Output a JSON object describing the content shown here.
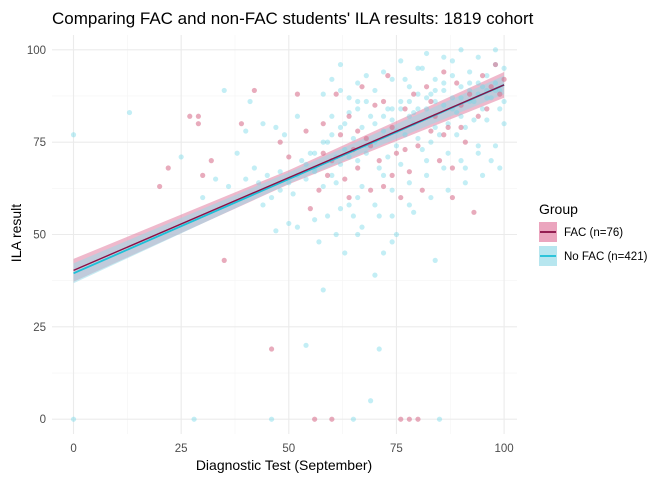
{
  "colors": {
    "fac": "#cc3366",
    "fac_point": "#d9738f",
    "fac_band": "#e27fa3",
    "nofac": "#1ec0d8",
    "nofac_point": "#6fd6e6",
    "nofac_band": "#99dbe8",
    "fac_line": "#8b1046",
    "grid_major": "#ebebeb",
    "grid_minor": "#f4f4f4"
  },
  "chart_data": {
    "type": "scatter",
    "title": "Comparing FAC and non-FAC students' ILA results: 1819 cohort",
    "xlabel": "Diagnostic Test (September)",
    "ylabel": "ILA result",
    "xlim": [
      -5,
      103
    ],
    "ylim": [
      -4,
      104
    ],
    "x_ticks": [
      "0",
      "25",
      "50",
      "75",
      "100"
    ],
    "y_ticks": [
      "0",
      "25",
      "50",
      "75",
      "100"
    ],
    "grid": true,
    "legend": {
      "title": "Group",
      "position": "right",
      "entries": [
        "FAC (n=76)",
        "No FAC (n=421)"
      ]
    },
    "series": [
      {
        "name": "FAC (n=76)",
        "trend": {
          "x": [
            0,
            100
          ],
          "y": [
            40.3,
            90.5
          ],
          "band": [
            [
              0,
              37.2,
              43.4
            ],
            [
              50,
              63.6,
              67.4
            ],
            [
              100,
              87.0,
              94.0
            ]
          ]
        },
        "points": [
          [
            20,
            63
          ],
          [
            22,
            68
          ],
          [
            27,
            82
          ],
          [
            29,
            82
          ],
          [
            29,
            80
          ],
          [
            30,
            66
          ],
          [
            32,
            70
          ],
          [
            35,
            43
          ],
          [
            39,
            80
          ],
          [
            42,
            89
          ],
          [
            46,
            19
          ],
          [
            48,
            75
          ],
          [
            50,
            71
          ],
          [
            52,
            88
          ],
          [
            54,
            78
          ],
          [
            55,
            57
          ],
          [
            57,
            62
          ],
          [
            58,
            80
          ],
          [
            59,
            66
          ],
          [
            60,
            70
          ],
          [
            62,
            77
          ],
          [
            63,
            65
          ],
          [
            64,
            82
          ],
          [
            65,
            73
          ],
          [
            66,
            68
          ],
          [
            67,
            90
          ],
          [
            68,
            76
          ],
          [
            69,
            62
          ],
          [
            70,
            85
          ],
          [
            71,
            70
          ],
          [
            72,
            63
          ],
          [
            73,
            93
          ],
          [
            74,
            79
          ],
          [
            75,
            72
          ],
          [
            76,
            60
          ],
          [
            77,
            84
          ],
          [
            78,
            67
          ],
          [
            79,
            88
          ],
          [
            80,
            74
          ],
          [
            81,
            62
          ],
          [
            82,
            90
          ],
          [
            83,
            78
          ],
          [
            84,
            82
          ],
          [
            85,
            70
          ],
          [
            86,
            94
          ],
          [
            87,
            79
          ],
          [
            88,
            68
          ],
          [
            89,
            91
          ],
          [
            90,
            85
          ],
          [
            91,
            75
          ],
          [
            92,
            88
          ],
          [
            93,
            56
          ],
          [
            94,
            82
          ],
          [
            95,
            93
          ],
          [
            96,
            84
          ],
          [
            97,
            90
          ],
          [
            98,
            96
          ],
          [
            99,
            88
          ],
          [
            100,
            92
          ],
          [
            56,
            0
          ],
          [
            60,
            0
          ],
          [
            76,
            0
          ],
          [
            78,
            0
          ],
          [
            80,
            0
          ],
          [
            58,
            72
          ],
          [
            61,
            88
          ],
          [
            64,
            60
          ],
          [
            66,
            78
          ],
          [
            69,
            74
          ],
          [
            72,
            86
          ],
          [
            74,
            66
          ],
          [
            77,
            73
          ],
          [
            83,
            86
          ],
          [
            86,
            77
          ],
          [
            88,
            60
          ],
          [
            90,
            79
          ]
        ]
      },
      {
        "name": "No FAC (n=421)",
        "trend": {
          "x": [
            0,
            100
          ],
          "y": [
            39.5,
            90.5
          ],
          "band": [
            [
              0,
              36.8,
              42.2
            ],
            [
              50,
              63.8,
              66.8
            ],
            [
              100,
              88.0,
              93.0
            ]
          ]
        },
        "points": [
          [
            0,
            77
          ],
          [
            0,
            0
          ],
          [
            13,
            83
          ],
          [
            25,
            71
          ],
          [
            28,
            0
          ],
          [
            33,
            65
          ],
          [
            35,
            89
          ],
          [
            38,
            72
          ],
          [
            40,
            78
          ],
          [
            41,
            86
          ],
          [
            43,
            64
          ],
          [
            44,
            80
          ],
          [
            45,
            66
          ],
          [
            46,
            0
          ],
          [
            47,
            79
          ],
          [
            48,
            67
          ],
          [
            49,
            77
          ],
          [
            50,
            53
          ],
          [
            51,
            61
          ],
          [
            52,
            82
          ],
          [
            53,
            70
          ],
          [
            54,
            20
          ],
          [
            55,
            72
          ],
          [
            56,
            67
          ],
          [
            57,
            48
          ],
          [
            58,
            88
          ],
          [
            59,
            75
          ],
          [
            60,
            82
          ],
          [
            61,
            64
          ],
          [
            62,
            96
          ],
          [
            63,
            80
          ],
          [
            64,
            58
          ],
          [
            65,
            0
          ],
          [
            66,
            86
          ],
          [
            67,
            63
          ],
          [
            68,
            74
          ],
          [
            69,
            5
          ],
          [
            70,
            39
          ],
          [
            71,
            19
          ],
          [
            72,
            66
          ],
          [
            73,
            84
          ],
          [
            74,
            55
          ],
          [
            75,
            78
          ],
          [
            76,
            69
          ],
          [
            77,
            92
          ],
          [
            78,
            58
          ],
          [
            79,
            83
          ],
          [
            80,
            76
          ],
          [
            81,
            95
          ],
          [
            82,
            70
          ],
          [
            83,
            88
          ],
          [
            84,
            79
          ],
          [
            85,
            0
          ],
          [
            86,
            85
          ],
          [
            87,
            72
          ],
          [
            88,
            97
          ],
          [
            89,
            77
          ],
          [
            90,
            82
          ],
          [
            91,
            68
          ],
          [
            92,
            94
          ],
          [
            93,
            86
          ],
          [
            94,
            74
          ],
          [
            95,
            90
          ],
          [
            96,
            81
          ],
          [
            97,
            70
          ],
          [
            98,
            96
          ],
          [
            99,
            84
          ],
          [
            100,
            80
          ],
          [
            58,
            35
          ],
          [
            63,
            45
          ],
          [
            66,
            50
          ],
          [
            72,
            45
          ],
          [
            74,
            48
          ],
          [
            84,
            43
          ],
          [
            47,
            51
          ],
          [
            52,
            52
          ],
          [
            56,
            54
          ],
          [
            62,
            57
          ],
          [
            66,
            60
          ],
          [
            70,
            58
          ],
          [
            74,
            62
          ],
          [
            78,
            64
          ],
          [
            82,
            66
          ],
          [
            86,
            68
          ],
          [
            90,
            70
          ],
          [
            94,
            72
          ],
          [
            98,
            74
          ],
          [
            60,
            92
          ],
          [
            62,
            89
          ],
          [
            64,
            87
          ],
          [
            66,
            91
          ],
          [
            68,
            93
          ],
          [
            70,
            89
          ],
          [
            72,
            94
          ],
          [
            74,
            92
          ],
          [
            76,
            97
          ],
          [
            78,
            90
          ],
          [
            80,
            95
          ],
          [
            82,
            99
          ],
          [
            84,
            92
          ],
          [
            86,
            98
          ],
          [
            88,
            93
          ],
          [
            90,
            100
          ],
          [
            92,
            91
          ],
          [
            94,
            98
          ],
          [
            96,
            93
          ],
          [
            98,
            100
          ],
          [
            100,
            95
          ],
          [
            61,
            71
          ],
          [
            63,
            73
          ],
          [
            65,
            76
          ],
          [
            67,
            79
          ],
          [
            69,
            82
          ],
          [
            71,
            68
          ],
          [
            73,
            71
          ],
          [
            75,
            74
          ],
          [
            77,
            77
          ],
          [
            79,
            80
          ],
          [
            81,
            73
          ],
          [
            83,
            75
          ],
          [
            85,
            77
          ],
          [
            87,
            80
          ],
          [
            89,
            83
          ],
          [
            91,
            79
          ],
          [
            93,
            81
          ],
          [
            95,
            84
          ],
          [
            97,
            87
          ],
          [
            99,
            89
          ],
          [
            54,
            65
          ],
          [
            56,
            68
          ],
          [
            58,
            63
          ],
          [
            60,
            66
          ],
          [
            62,
            69
          ],
          [
            64,
            71
          ],
          [
            66,
            70
          ],
          [
            68,
            72
          ],
          [
            70,
            75
          ],
          [
            72,
            78
          ],
          [
            74,
            81
          ],
          [
            76,
            84
          ],
          [
            78,
            86
          ],
          [
            80,
            88
          ],
          [
            82,
            84
          ],
          [
            84,
            86
          ],
          [
            86,
            89
          ],
          [
            88,
            87
          ],
          [
            90,
            90
          ],
          [
            92,
            86
          ],
          [
            94,
            88
          ],
          [
            96,
            89
          ],
          [
            98,
            91
          ],
          [
            100,
            86
          ],
          [
            44,
            58
          ],
          [
            46,
            60
          ],
          [
            48,
            62
          ],
          [
            50,
            64
          ],
          [
            52,
            66
          ],
          [
            54,
            69
          ],
          [
            56,
            72
          ],
          [
            58,
            75
          ],
          [
            60,
            77
          ],
          [
            62,
            79
          ],
          [
            64,
            83
          ],
          [
            66,
            84
          ],
          [
            68,
            86
          ],
          [
            70,
            80
          ],
          [
            72,
            82
          ],
          [
            74,
            84
          ],
          [
            76,
            86
          ],
          [
            78,
            82
          ],
          [
            80,
            84
          ],
          [
            82,
            87
          ],
          [
            84,
            89
          ],
          [
            86,
            91
          ],
          [
            88,
            84
          ],
          [
            90,
            87
          ],
          [
            92,
            89
          ],
          [
            94,
            91
          ],
          [
            96,
            87
          ],
          [
            98,
            89
          ],
          [
            30,
            60
          ],
          [
            36,
            63
          ],
          [
            40,
            65
          ],
          [
            42,
            68
          ],
          [
            59,
            55
          ],
          [
            61,
            50
          ],
          [
            65,
            55
          ],
          [
            67,
            52
          ],
          [
            71,
            55
          ],
          [
            75,
            50
          ],
          [
            79,
            56
          ],
          [
            83,
            60
          ],
          [
            87,
            62
          ],
          [
            91,
            64
          ],
          [
            95,
            66
          ],
          [
            99,
            68
          ]
        ]
      }
    ]
  }
}
